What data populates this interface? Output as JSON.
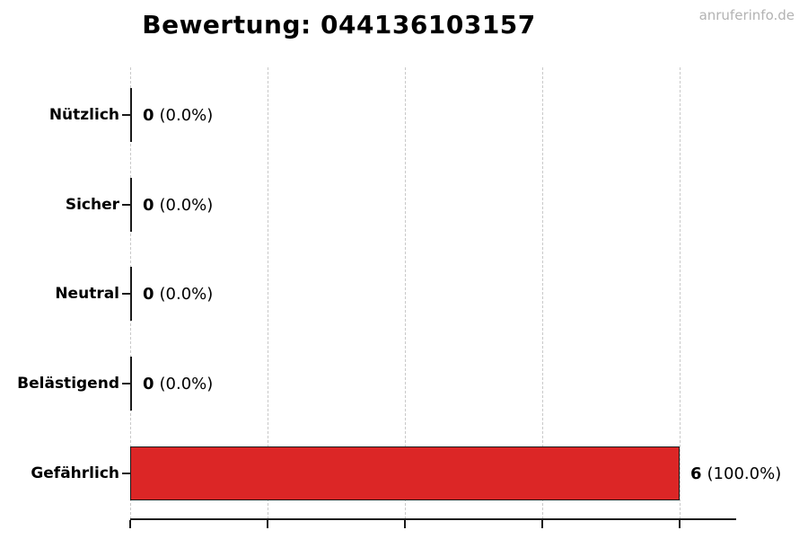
{
  "title": "Bewertung: 044136103157",
  "watermark": "anruferinfo.de",
  "chart_data": {
    "type": "bar",
    "orientation": "horizontal",
    "title": "Bewertung: 044136103157",
    "categories": [
      "Nützlich",
      "Sicher",
      "Neutral",
      "Belästigend",
      "Gefährlich"
    ],
    "values": [
      0,
      0,
      0,
      0,
      6
    ],
    "value_labels": [
      "0 (0.0%)",
      "0 (0.0%)",
      "0 (0.0%)",
      "0 (0.0%)",
      "6 (100.0%)"
    ],
    "total_votes": 6,
    "xlim": [
      0,
      6.6
    ],
    "x_gridline_values": [
      0,
      1.5,
      3,
      4.5,
      6
    ],
    "grid": true,
    "legend": "none",
    "bar_color": "#dc2626",
    "bar_edge_color": "#1a1a1a",
    "gridline_color": "#c9c9c9",
    "rows": [
      {
        "label": "Nützlich",
        "value": 0,
        "count": "0",
        "percent": "(0.0%)"
      },
      {
        "label": "Sicher",
        "value": 0,
        "count": "0",
        "percent": "(0.0%)"
      },
      {
        "label": "Neutral",
        "value": 0,
        "count": "0",
        "percent": "(0.0%)"
      },
      {
        "label": "Belästigend",
        "value": 0,
        "count": "0",
        "percent": "(0.0%)"
      },
      {
        "label": "Gefährlich",
        "value": 6,
        "count": "6",
        "percent": "(100.0%)"
      }
    ]
  }
}
